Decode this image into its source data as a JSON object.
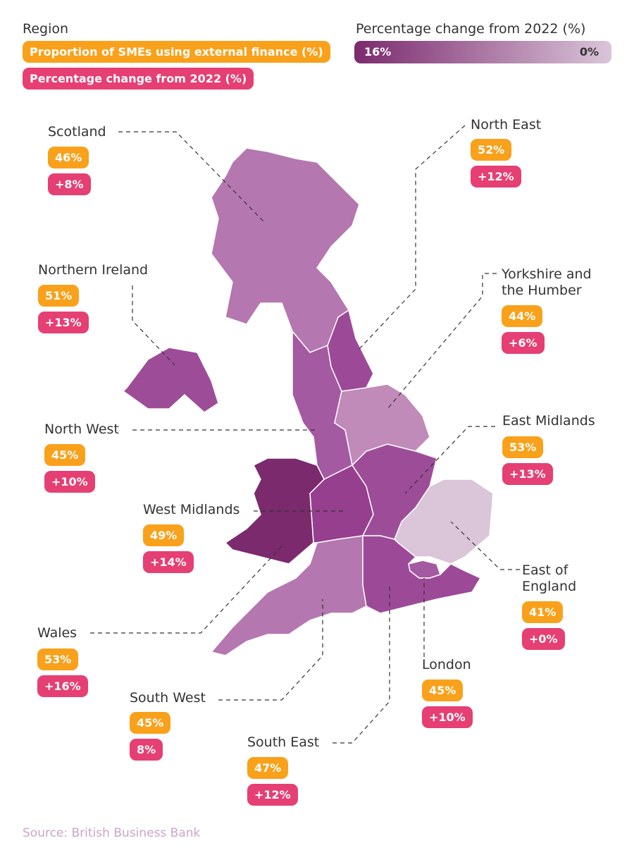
{
  "legend": {
    "region": "Region",
    "proportion": "Proportion of SMEs using external finance (%)",
    "change": "Percentage change from 2022 (%)",
    "scale_title": "Percentage change from 2022 (%)",
    "scale_max": "16%",
    "scale_min": "0%"
  },
  "regions": [
    {
      "name": "Scotland",
      "proportion": "46%",
      "change": "+8%",
      "color": "#b477b0"
    },
    {
      "name": "Northern Ireland",
      "proportion": "51%",
      "change": "+13%",
      "color": "#9d4d98"
    },
    {
      "name": "North West",
      "proportion": "45%",
      "change": "+10%",
      "color": "#a45aa0"
    },
    {
      "name": "West Midlands",
      "proportion": "49%",
      "change": "+14%",
      "color": "#953f8e"
    },
    {
      "name": "Wales",
      "proportion": "53%",
      "change": "+16%",
      "color": "#7b2a6e"
    },
    {
      "name": "South West",
      "proportion": "45%",
      "change": "8%",
      "color": "#b477b0"
    },
    {
      "name": "South East",
      "proportion": "47%",
      "change": "+12%",
      "color": "#9c4a97"
    },
    {
      "name": "London",
      "proportion": "45%",
      "change": "+10%",
      "color": "#a45aa0"
    },
    {
      "name": "East of England",
      "proportion": "41%",
      "change": "+0%",
      "color": "#dac5d9"
    },
    {
      "name": "East Midlands",
      "proportion": "53%",
      "change": "+13%",
      "color": "#9d4d98"
    },
    {
      "name": "Yorkshire and the Humber",
      "proportion": "44%",
      "change": "+6%",
      "color": "#c08ab9"
    },
    {
      "name": "North East",
      "proportion": "52%",
      "change": "+12%",
      "color": "#9c4a97"
    }
  ],
  "source": "Source: British Business Bank"
}
